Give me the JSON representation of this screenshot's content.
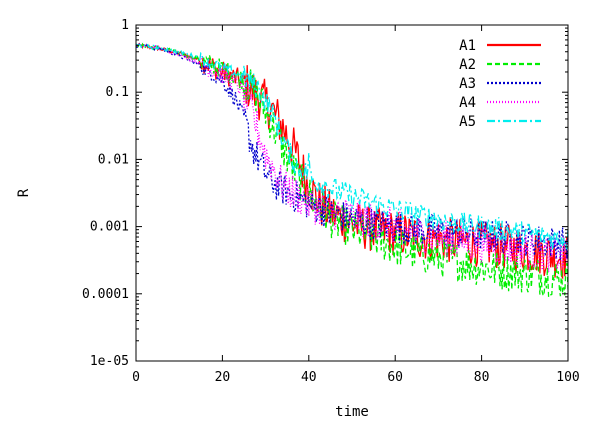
{
  "chart_data": {
    "type": "line",
    "xlabel": "time",
    "ylabel": "R",
    "xlim": [
      0,
      100
    ],
    "ylim": [
      1e-05,
      1
    ],
    "yscale": "log",
    "xticks": [
      0,
      20,
      40,
      60,
      80,
      100
    ],
    "xtick_labels": [
      "0",
      "20",
      "40",
      "60",
      "80",
      "100"
    ],
    "yticks": [
      1e-05,
      0.0001,
      0.001,
      0.01,
      0.1,
      1
    ],
    "ytick_labels": [
      "1e-05",
      "0.0001",
      "0.001",
      "0.01",
      "0.1",
      "1"
    ],
    "grid": false,
    "legend_position": "top-right",
    "series": [
      {
        "name": "A1",
        "color": "#ff0000",
        "dash": "solid",
        "x": [
          0,
          5,
          10,
          15,
          20,
          25,
          28,
          31,
          34,
          37,
          40,
          43,
          46,
          50,
          55,
          60,
          65,
          70,
          75,
          80,
          85,
          90,
          95,
          100
        ],
        "y": [
          0.5,
          0.45,
          0.38,
          0.3,
          0.2,
          0.14,
          0.09,
          0.06,
          0.03,
          0.012,
          0.004,
          0.002,
          0.0015,
          0.0011,
          0.0009,
          0.0008,
          0.0007,
          0.00065,
          0.0006,
          0.00055,
          0.0005,
          0.00045,
          0.0004,
          0.00035
        ],
        "noise": 0.35
      },
      {
        "name": "A2",
        "color": "#00ee00",
        "dash": "5,3",
        "x": [
          0,
          5,
          10,
          15,
          20,
          25,
          28,
          31,
          34,
          37,
          40,
          43,
          46,
          50,
          55,
          60,
          65,
          70,
          75,
          80,
          85,
          90,
          95,
          100
        ],
        "y": [
          0.5,
          0.46,
          0.39,
          0.3,
          0.22,
          0.15,
          0.09,
          0.04,
          0.015,
          0.006,
          0.003,
          0.0018,
          0.0012,
          0.0009,
          0.0007,
          0.0005,
          0.0004,
          0.00035,
          0.0003,
          0.00025,
          0.00022,
          0.0002,
          0.00018,
          0.00016
        ],
        "noise": 0.3
      },
      {
        "name": "A3",
        "color": "#0000cc",
        "dash": "2,2",
        "x": [
          0,
          5,
          10,
          15,
          20,
          23,
          25,
          27,
          29,
          31,
          33,
          36,
          40,
          45,
          50,
          55,
          60,
          65,
          70,
          75,
          80,
          85,
          90,
          95,
          100
        ],
        "y": [
          0.5,
          0.45,
          0.35,
          0.25,
          0.15,
          0.08,
          0.04,
          0.015,
          0.008,
          0.005,
          0.004,
          0.003,
          0.0022,
          0.0016,
          0.0013,
          0.0011,
          0.001,
          0.0009,
          0.00085,
          0.0008,
          0.00075,
          0.0007,
          0.00065,
          0.0006,
          0.00055
        ],
        "noise": 0.25
      },
      {
        "name": "A4",
        "color": "#ff00ff",
        "dash": "1,2",
        "x": [
          0,
          5,
          10,
          15,
          20,
          24,
          26,
          28,
          30,
          32,
          34,
          37,
          40,
          45,
          50,
          55,
          60,
          65,
          70,
          75,
          80,
          85,
          90,
          95,
          100
        ],
        "y": [
          0.5,
          0.46,
          0.37,
          0.27,
          0.18,
          0.12,
          0.07,
          0.03,
          0.012,
          0.007,
          0.004,
          0.003,
          0.0022,
          0.0017,
          0.0014,
          0.0012,
          0.001,
          0.0008,
          0.0007,
          0.00062,
          0.00055,
          0.0005,
          0.00045,
          0.0004,
          0.00036
        ],
        "noise": 0.28
      },
      {
        "name": "A5",
        "color": "#00eeee",
        "dash": "8,3,2,3",
        "x": [
          0,
          5,
          10,
          15,
          20,
          25,
          28,
          31,
          34,
          37,
          39.8,
          40,
          40.3,
          43,
          46,
          50,
          55,
          60,
          65,
          70,
          75,
          80,
          85,
          90,
          95,
          100
        ],
        "y": [
          0.5,
          0.46,
          0.4,
          0.32,
          0.23,
          0.17,
          0.12,
          0.06,
          0.02,
          0.008,
          0.006,
          0.015,
          0.005,
          0.0045,
          0.0035,
          0.0028,
          0.0022,
          0.0018,
          0.0015,
          0.0013,
          0.0011,
          0.001,
          0.0009,
          0.0008,
          0.0007,
          0.00065
        ],
        "noise": 0.18
      }
    ]
  }
}
